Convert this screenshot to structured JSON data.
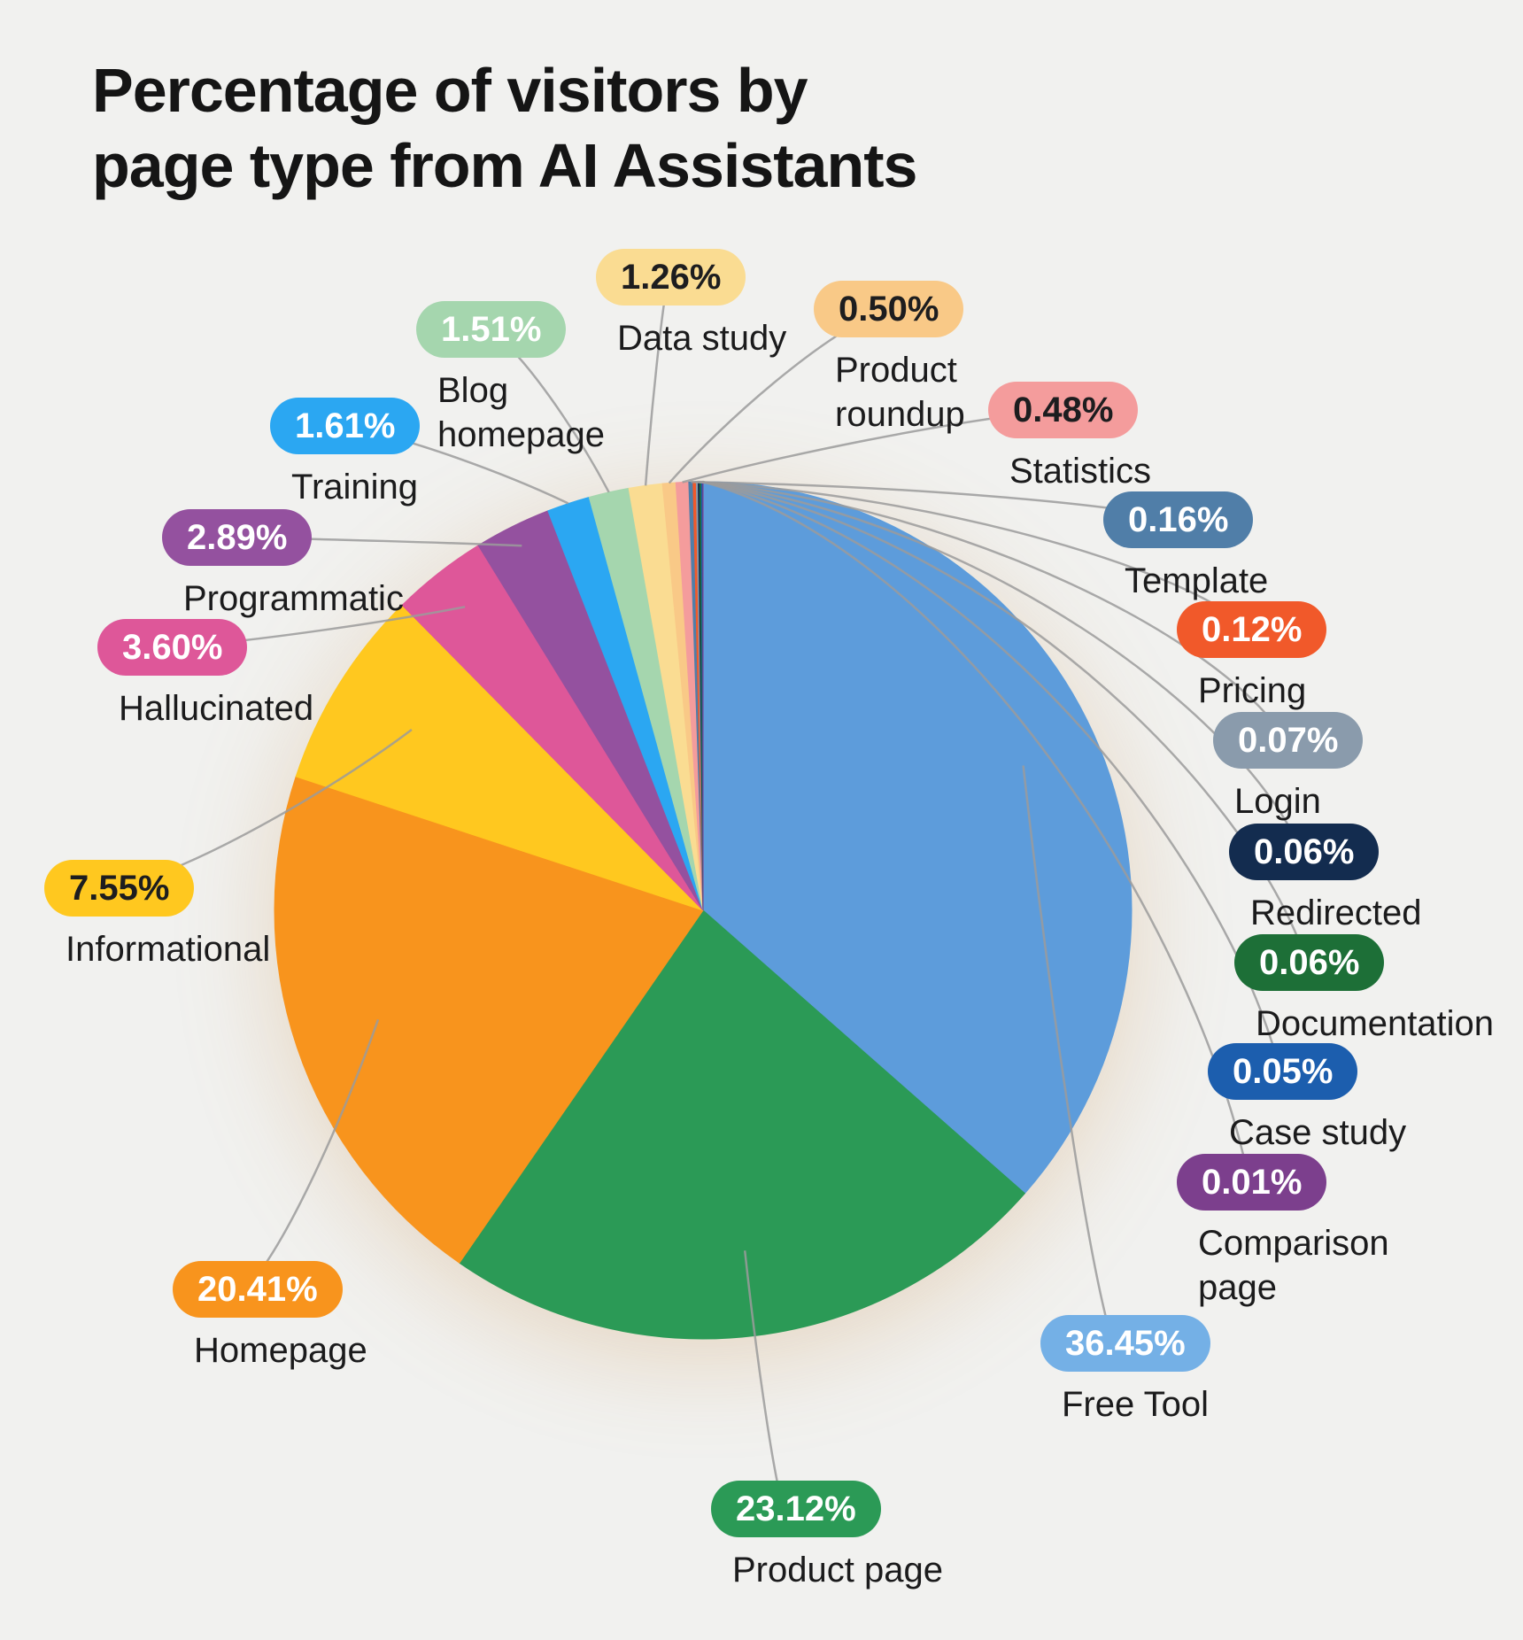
{
  "title": "Percentage of visitors by page type from AI Assistants",
  "background_color": "#f1f1ef",
  "chart_data": {
    "type": "pie",
    "title": "Percentage of visitors by page type from AI Assistants",
    "unit": "%",
    "direction": "clockwise",
    "start_angle_deg": 0,
    "legend_position": "callout-labels-around-pie",
    "segments": [
      {
        "label": "Free Tool",
        "value": 36.45,
        "display": "36.45%",
        "color": "#5d9cdb",
        "badge_color": "#74b0e6",
        "text_color": "#ffffff"
      },
      {
        "label": "Product page",
        "value": 23.12,
        "display": "23.12%",
        "color": "#2b9a56",
        "text_color": "#ffffff"
      },
      {
        "label": "Homepage",
        "value": 20.41,
        "display": "20.41%",
        "color": "#f8941d",
        "text_color": "#ffffff"
      },
      {
        "label": "Informational",
        "value": 7.55,
        "display": "7.55%",
        "color": "#ffc81f",
        "text_color": "#1d1d1f"
      },
      {
        "label": "Hallucinated",
        "value": 3.6,
        "display": "3.60%",
        "color": "#de5799",
        "text_color": "#ffffff"
      },
      {
        "label": "Programmatic",
        "value": 2.89,
        "display": "2.89%",
        "color": "#94519f",
        "text_color": "#ffffff"
      },
      {
        "label": "Training",
        "value": 1.61,
        "display": "1.61%",
        "color": "#2ba7f2",
        "text_color": "#ffffff"
      },
      {
        "label": "Blog homepage",
        "value": 1.51,
        "display": "1.51%",
        "color": "#a5d6ae",
        "text_color": "#ffffff"
      },
      {
        "label": "Data study",
        "value": 1.26,
        "display": "1.26%",
        "color": "#fadc92",
        "text_color": "#1d1d1f"
      },
      {
        "label": "Product roundup",
        "value": 0.5,
        "display": "0.50%",
        "color": "#f9c987",
        "text_color": "#1d1d1f"
      },
      {
        "label": "Statistics",
        "value": 0.48,
        "display": "0.48%",
        "color": "#f49c9c",
        "text_color": "#1d1d1f"
      },
      {
        "label": "Template",
        "value": 0.16,
        "display": "0.16%",
        "color": "#507ea8",
        "text_color": "#ffffff"
      },
      {
        "label": "Pricing",
        "value": 0.12,
        "display": "0.12%",
        "color": "#f1592a",
        "text_color": "#ffffff"
      },
      {
        "label": "Login",
        "value": 0.07,
        "display": "0.07%",
        "color": "#8a9bac",
        "text_color": "#ffffff"
      },
      {
        "label": "Redirected",
        "value": 0.06,
        "display": "0.06%",
        "color": "#132c4f",
        "text_color": "#ffffff"
      },
      {
        "label": "Documentation",
        "value": 0.06,
        "display": "0.06%",
        "color": "#1d6f37",
        "text_color": "#ffffff"
      },
      {
        "label": "Case study",
        "value": 0.05,
        "display": "0.05%",
        "color": "#1c5eae",
        "text_color": "#ffffff"
      },
      {
        "label": "Comparison page",
        "value": 0.01,
        "display": "0.01%",
        "color": "#7c3f8d",
        "text_color": "#ffffff"
      }
    ]
  }
}
